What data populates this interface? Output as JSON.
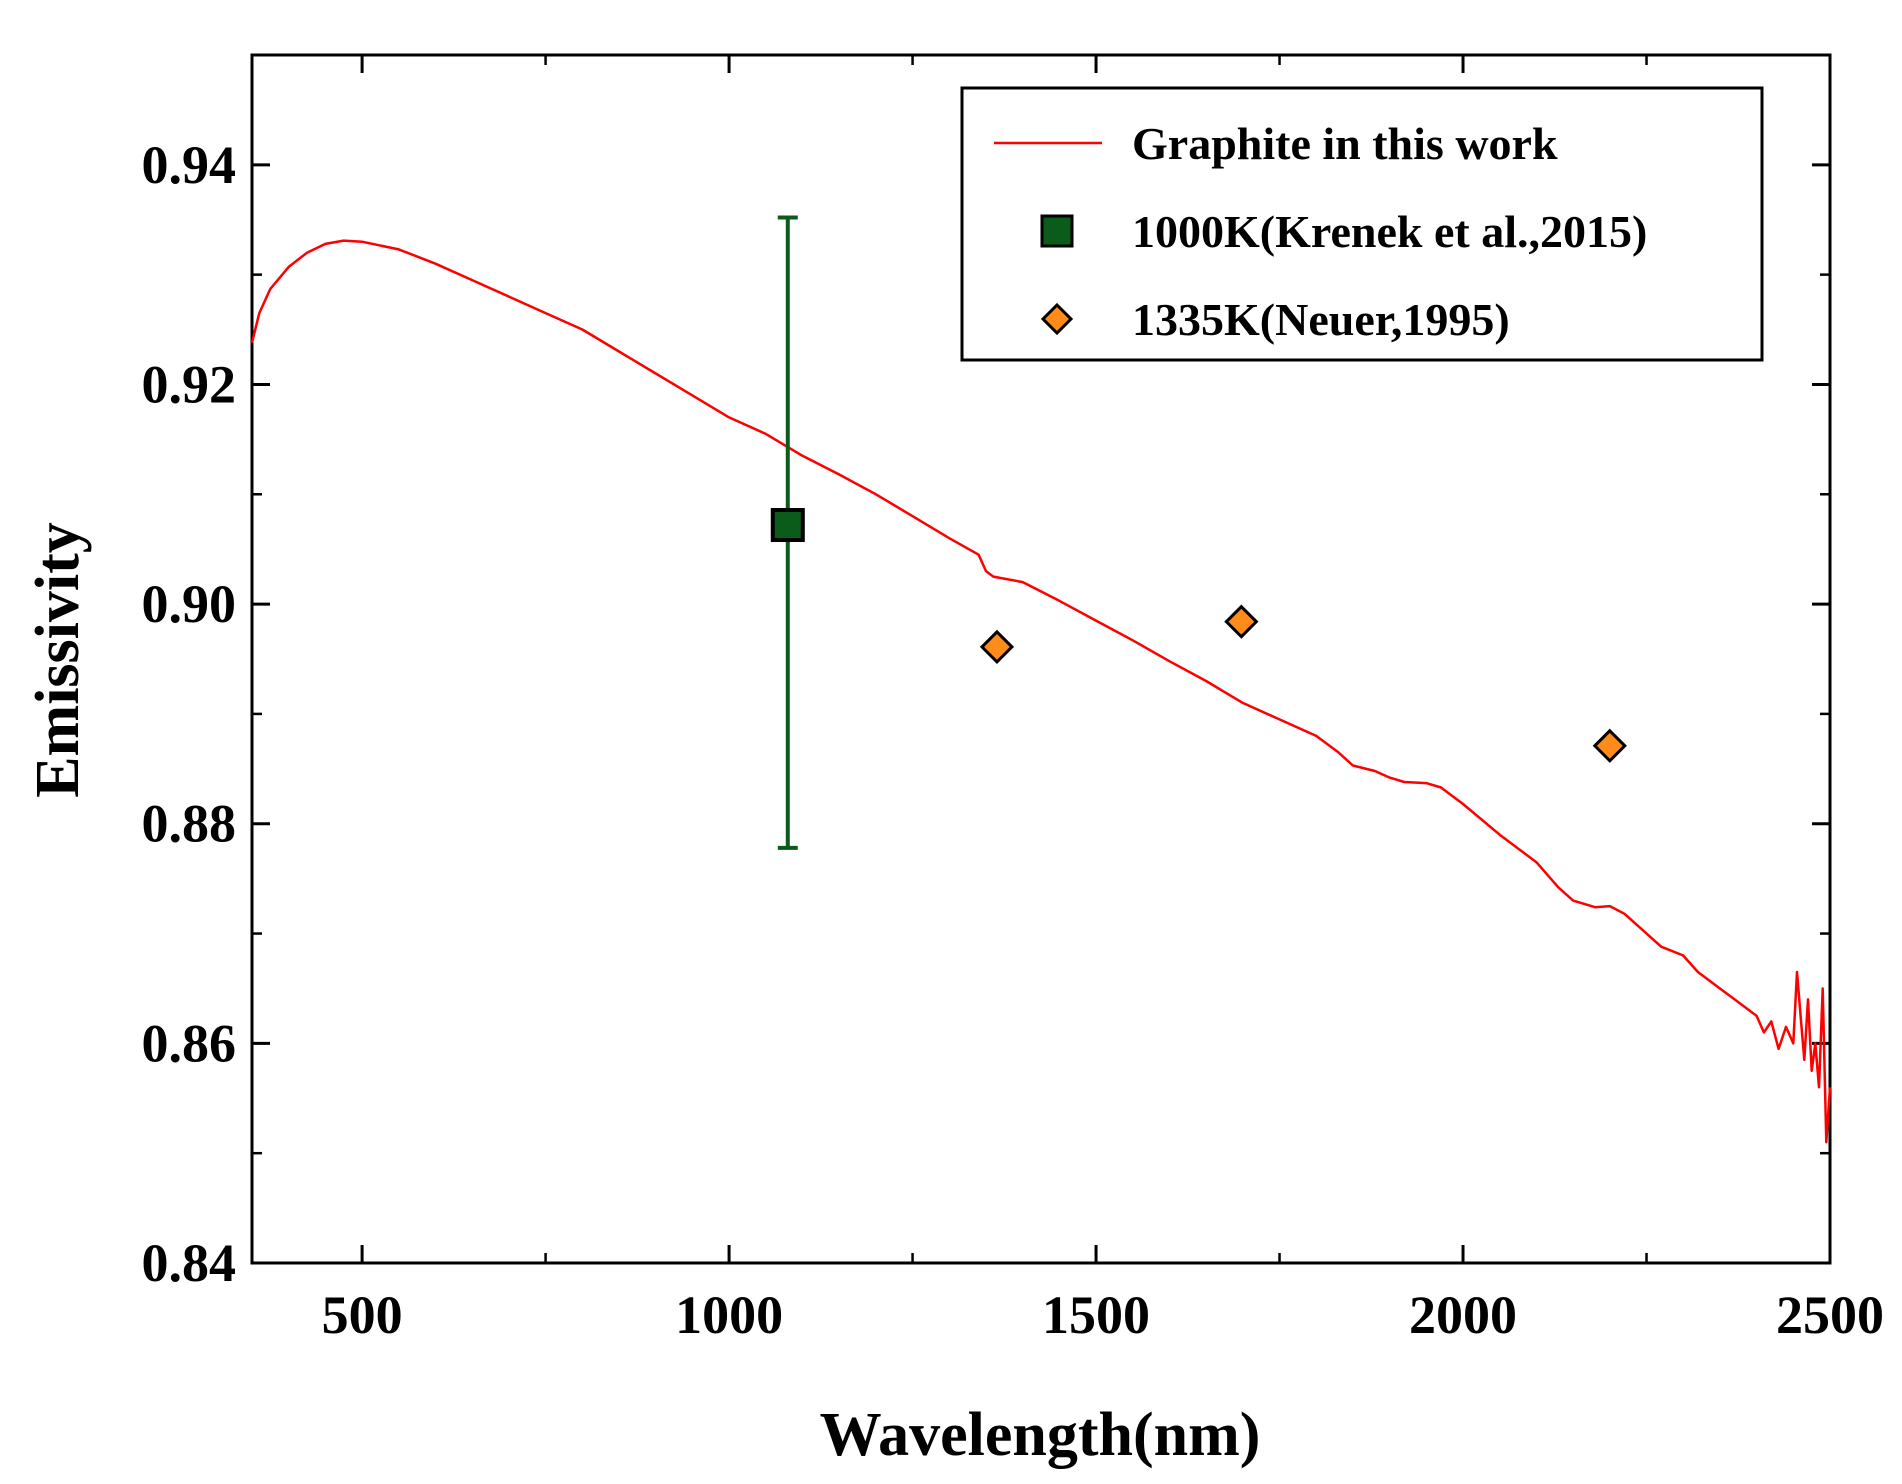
{
  "chart_data": {
    "type": "line",
    "title": "",
    "xlabel": "Wavelength(nm)",
    "ylabel": "Emissivity",
    "xlim": [
      350,
      2500
    ],
    "ylim": [
      0.84,
      0.95
    ],
    "xticks": [
      500,
      1000,
      1500,
      2000,
      2500
    ],
    "yticks": [
      0.84,
      0.86,
      0.88,
      0.9,
      0.92,
      0.94
    ],
    "ytick_labels": [
      "0.84",
      "0.86",
      "0.88",
      "0.90",
      "0.92",
      "0.94"
    ],
    "xtick_labels": [
      "500",
      "1000",
      "1500",
      "2000",
      "2500"
    ],
    "grid": false,
    "legend_position": "top-right",
    "series": [
      {
        "name": "Graphite in this work",
        "kind": "line",
        "color": "#ff0000",
        "x": [
          350,
          360,
          375,
          400,
          425,
          450,
          475,
          500,
          550,
          600,
          650,
          700,
          750,
          800,
          850,
          900,
          950,
          1000,
          1050,
          1100,
          1150,
          1200,
          1250,
          1300,
          1340,
          1350,
          1360,
          1400,
          1450,
          1500,
          1550,
          1600,
          1650,
          1700,
          1750,
          1800,
          1830,
          1850,
          1880,
          1900,
          1920,
          1950,
          1970,
          2000,
          2050,
          2100,
          2130,
          2150,
          2180,
          2200,
          2220,
          2250,
          2270,
          2300,
          2320,
          2350,
          2370,
          2400,
          2410,
          2420,
          2430,
          2440,
          2450,
          2455,
          2460,
          2465,
          2470,
          2475,
          2480,
          2485,
          2490,
          2495,
          2500
        ],
        "y": [
          0.9238,
          0.9265,
          0.9287,
          0.9307,
          0.932,
          0.9328,
          0.9331,
          0.933,
          0.9323,
          0.931,
          0.9295,
          0.928,
          0.9265,
          0.925,
          0.923,
          0.921,
          0.919,
          0.917,
          0.9155,
          0.9135,
          0.9118,
          0.91,
          0.908,
          0.906,
          0.9045,
          0.903,
          0.9025,
          0.902,
          0.9003,
          0.8985,
          0.8967,
          0.8948,
          0.893,
          0.891,
          0.8895,
          0.888,
          0.8865,
          0.8853,
          0.8848,
          0.8842,
          0.8838,
          0.8837,
          0.8833,
          0.8818,
          0.879,
          0.8765,
          0.8742,
          0.873,
          0.8724,
          0.8725,
          0.8718,
          0.87,
          0.8688,
          0.868,
          0.8665,
          0.865,
          0.864,
          0.8625,
          0.861,
          0.862,
          0.8595,
          0.8615,
          0.86,
          0.8665,
          0.8625,
          0.8585,
          0.864,
          0.8575,
          0.86,
          0.856,
          0.865,
          0.851,
          0.856
        ]
      },
      {
        "name": "1000K(Krenek et al.,2015)",
        "kind": "marker",
        "marker": "square",
        "color": "#0b5b1a",
        "x": [
          1080
        ],
        "y": [
          0.9072
        ],
        "yerr_low": [
          0.8778
        ],
        "yerr_high": [
          0.9352
        ]
      },
      {
        "name": "1335K(Neuer,1995)",
        "kind": "marker",
        "marker": "diamond",
        "color": "#ff8c1a",
        "x": [
          1365,
          1698,
          2200
        ],
        "y": [
          0.8961,
          0.8984,
          0.8871
        ]
      }
    ]
  }
}
